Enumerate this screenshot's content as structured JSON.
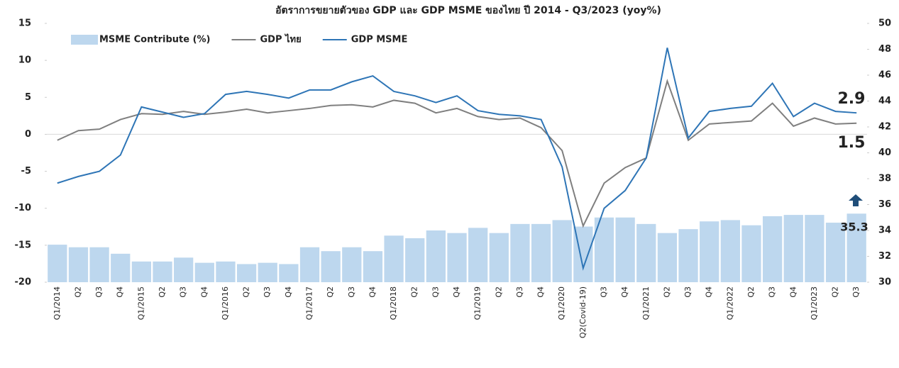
{
  "chart_data": {
    "type": "bar-line",
    "title": "อัตราการขยายตัวของ GDP และ GDP MSME ของไทย ปี 2014 - Q3/2023 (yoy%)",
    "categories": [
      "Q1/2014",
      "Q2",
      "Q3",
      "Q4",
      "Q1/2015",
      "Q2",
      "Q3",
      "Q4",
      "Q1/2016",
      "Q2",
      "Q3",
      "Q4",
      "Q1/2017",
      "Q2",
      "Q3",
      "Q4",
      "Q1/2018",
      "Q2",
      "Q3",
      "Q4",
      "Q1/2019",
      "Q2",
      "Q3",
      "Q4",
      "Q1/2020",
      "Q2(Covid-19)",
      "Q3",
      "Q4",
      "Q1/2021",
      "Q2",
      "Q3",
      "Q4",
      "Q1/2022",
      "Q2",
      "Q3",
      "Q4",
      "Q1/2023",
      "Q2",
      "Q3"
    ],
    "series": [
      {
        "name": "MSME Contribute (%)",
        "type": "bar",
        "axis": "y2",
        "color": "#bdd7ee",
        "values": [
          32.9,
          32.7,
          32.7,
          32.2,
          31.6,
          31.6,
          31.9,
          31.5,
          31.6,
          31.4,
          31.5,
          31.4,
          32.7,
          32.4,
          32.7,
          32.4,
          33.6,
          33.4,
          34.0,
          33.8,
          34.2,
          33.8,
          34.5,
          34.5,
          34.8,
          34.3,
          35.0,
          35.0,
          34.5,
          33.8,
          34.1,
          34.7,
          34.8,
          34.4,
          35.1,
          35.2,
          35.2,
          34.6,
          35.3
        ]
      },
      {
        "name": "GDP ไทย",
        "type": "line",
        "color": "#7f7f7f",
        "values": [
          -0.8,
          0.5,
          0.7,
          2.0,
          2.8,
          2.7,
          3.1,
          2.7,
          3.0,
          3.4,
          2.9,
          3.2,
          3.5,
          3.9,
          4.0,
          3.7,
          4.6,
          4.2,
          2.9,
          3.5,
          2.4,
          2.0,
          2.2,
          0.9,
          -2.2,
          -12.4,
          -6.6,
          -4.5,
          -3.2,
          7.2,
          -0.8,
          1.4,
          1.6,
          1.8,
          4.2,
          1.1,
          2.2,
          1.4,
          1.5
        ]
      },
      {
        "name": "GDP MSME",
        "type": "line",
        "color": "#2e75b6",
        "values": [
          -6.6,
          -5.7,
          -5.0,
          -2.8,
          3.7,
          3.0,
          2.3,
          2.8,
          5.4,
          5.8,
          5.4,
          4.9,
          6.0,
          6.0,
          7.1,
          7.9,
          5.8,
          5.2,
          4.3,
          5.2,
          3.2,
          2.7,
          2.5,
          2.0,
          -4.4,
          -18.1,
          -10.0,
          -7.6,
          -3.2,
          11.7,
          -0.5,
          3.1,
          3.5,
          3.8,
          6.9,
          2.4,
          4.2,
          3.1,
          2.9
        ]
      }
    ],
    "ylim": [
      -20,
      15
    ],
    "yticks": [
      -20,
      -15,
      -10,
      -5,
      0,
      5,
      10,
      15
    ],
    "y2lim": [
      30,
      50
    ],
    "y2ticks": [
      30,
      32,
      34,
      36,
      38,
      40,
      42,
      44,
      46,
      48,
      50
    ],
    "grid": false,
    "legend": "top-left"
  }
}
